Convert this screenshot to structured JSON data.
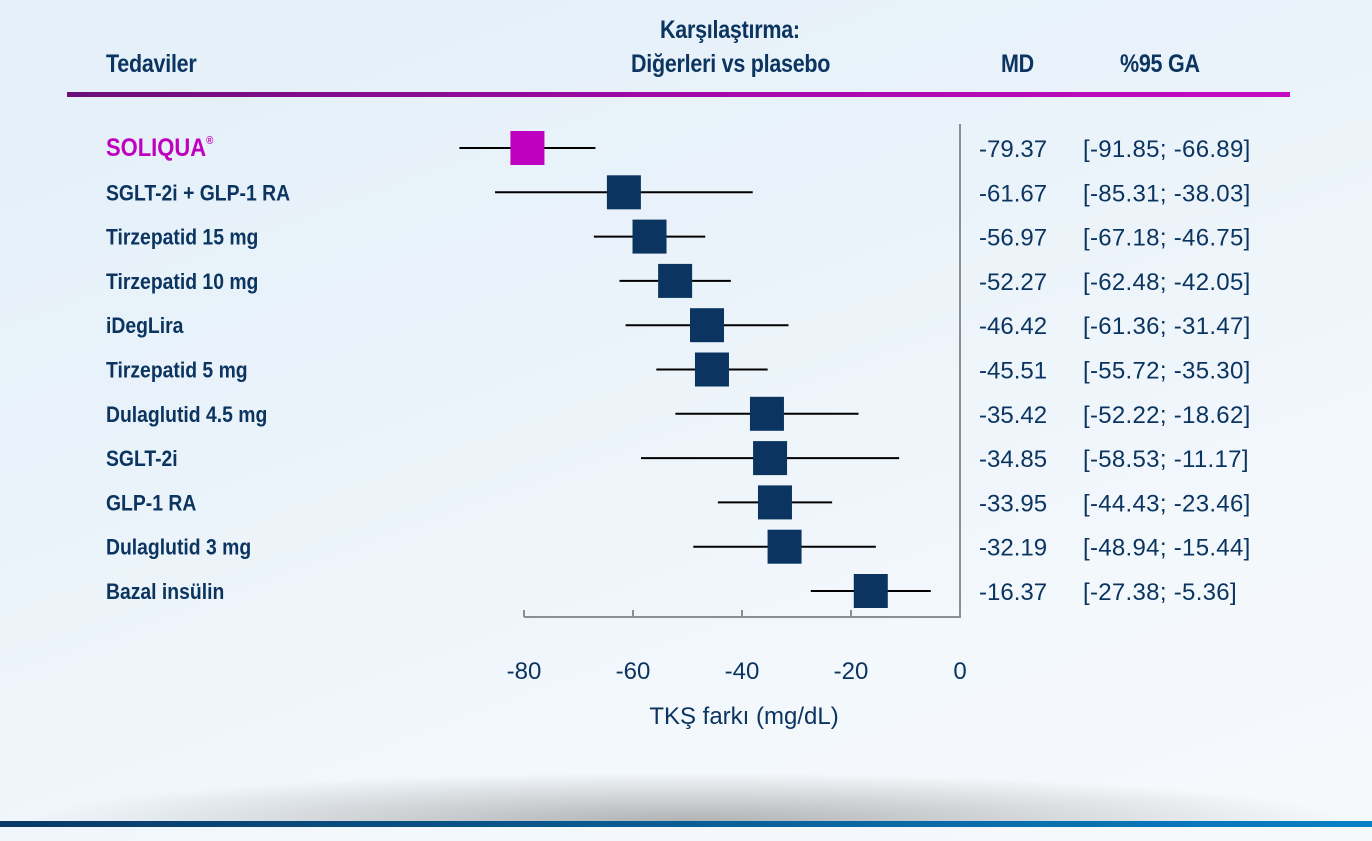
{
  "header": {
    "col_treatments": "Tedaviler",
    "col_comparison_line1": "Karşılaştırma:",
    "col_comparison_line2": "Diğerleri vs plasebo",
    "col_md": "MD",
    "col_ci": "%95 GA"
  },
  "colors": {
    "highlight": "#c000c0",
    "marker": "#0b3560",
    "rule": "#a20aa8"
  },
  "chart_data": {
    "type": "forest",
    "xlabel": "TKŞ farkı (mg/dL)",
    "xlim": [
      -80,
      0
    ],
    "xticks": [
      "-80",
      "-60",
      "-40",
      "-20",
      "0"
    ],
    "rows": [
      {
        "label": "SOLIQUA",
        "superscript": "®",
        "highlight": true,
        "md": -79.37,
        "lo": -91.85,
        "hi": -66.89,
        "md_text": "-79.37",
        "ci_text": "[-91.85; -66.89]"
      },
      {
        "label": "SGLT-2i + GLP-1 RA",
        "md": -61.67,
        "lo": -85.31,
        "hi": -38.03,
        "md_text": "-61.67",
        "ci_text": "[-85.31; -38.03]"
      },
      {
        "label": "Tirzepatid 15 mg",
        "md": -56.97,
        "lo": -67.18,
        "hi": -46.75,
        "md_text": "-56.97",
        "ci_text": "[-67.18; -46.75]"
      },
      {
        "label": "Tirzepatid 10 mg",
        "md": -52.27,
        "lo": -62.48,
        "hi": -42.05,
        "md_text": "-52.27",
        "ci_text": "[-62.48; -42.05]"
      },
      {
        "label": "iDegLira",
        "md": -46.42,
        "lo": -61.36,
        "hi": -31.47,
        "md_text": "-46.42",
        "ci_text": "[-61.36; -31.47]"
      },
      {
        "label": "Tirzepatid 5 mg",
        "md": -45.51,
        "lo": -55.72,
        "hi": -35.3,
        "md_text": "-45.51",
        "ci_text": "[-55.72; -35.30]"
      },
      {
        "label": "Dulaglutid 4.5 mg",
        "md": -35.42,
        "lo": -52.22,
        "hi": -18.62,
        "md_text": "-35.42",
        "ci_text": "[-52.22; -18.62]"
      },
      {
        "label": "SGLT-2i",
        "md": -34.85,
        "lo": -58.53,
        "hi": -11.17,
        "md_text": "-34.85",
        "ci_text": "[-58.53; -11.17]"
      },
      {
        "label": "GLP-1 RA",
        "md": -33.95,
        "lo": -44.43,
        "hi": -23.46,
        "md_text": "-33.95",
        "ci_text": "[-44.43; -23.46]"
      },
      {
        "label": "Dulaglutid 3 mg",
        "md": -32.19,
        "lo": -48.94,
        "hi": -15.44,
        "md_text": "-32.19",
        "ci_text": "[-48.94; -15.44]"
      },
      {
        "label": "Bazal insülin",
        "md": -16.37,
        "lo": -27.38,
        "hi": -5.36,
        "md_text": "-16.37",
        "ci_text": "[-27.38; -5.36]"
      }
    ]
  }
}
